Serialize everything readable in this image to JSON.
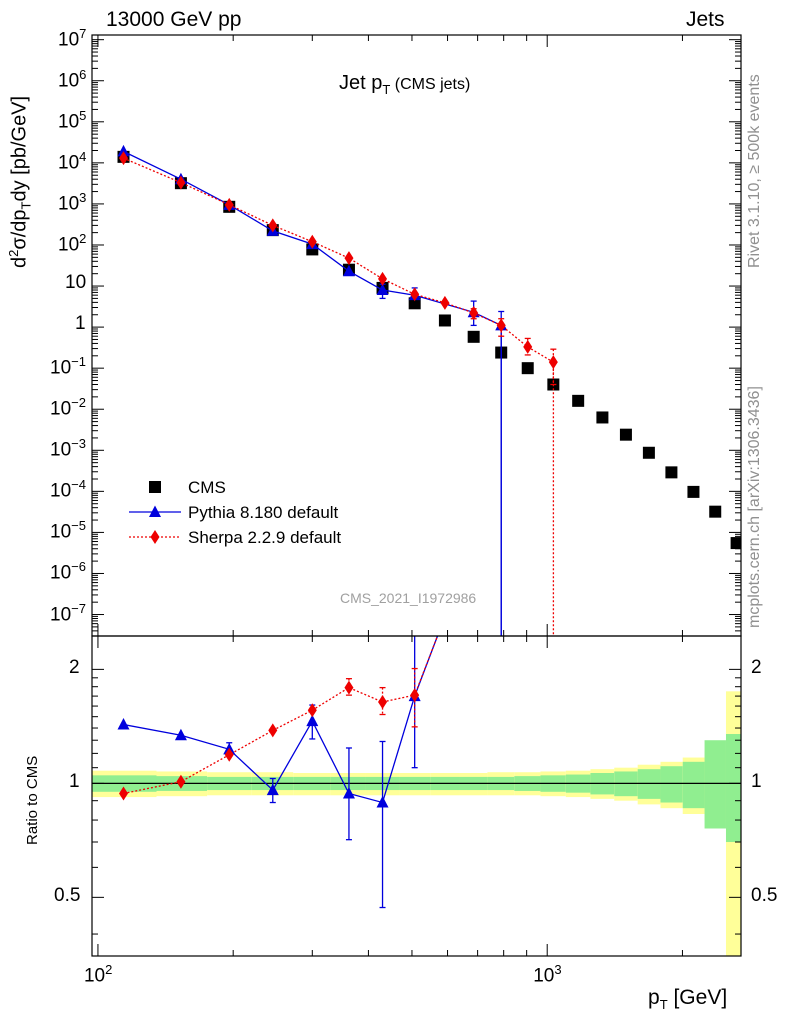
{
  "header": {
    "left": "13000 GeV pp",
    "right": "Jets"
  },
  "title": {
    "main": "Jet p",
    "sub": "T",
    "extra": " (CMS jets)"
  },
  "watermark": "CMS_2021_I1972986",
  "side_labels": {
    "rivet": "Rivet 3.1.10, ≥ 500k events",
    "source": "mcplots.cern.ch [arXiv:1306.3436]"
  },
  "chart_data": [
    {
      "type": "scatter",
      "panel": "main",
      "x_scale": "log",
      "y_scale": "log",
      "xlim": [
        97,
        2700
      ],
      "ylim": [
        3e-08,
        13000000.0
      ],
      "ylabel": "d²σ/dp_T dy [pb/GeV]",
      "ylabel_parts": {
        "a": "d",
        "sup": "2",
        "b": "σ/dp",
        "sub": "T",
        "c": "dy [pb/GeV]"
      },
      "ytick_labels": {
        "1e7": "10^7",
        "1e6": "10^6",
        "1e5": "10^5",
        "1e4": "10^4",
        "1e3": "10^3",
        "1e2": "10^2",
        "10": "10",
        "1": "1",
        "1e-1": "10^-1",
        "1e-2": "10^-2",
        "1e-3": "10^-3",
        "1e-4": "10^-4",
        "1e-5": "10^-5",
        "1e-6": "10^-6",
        "1e-7": "10^-7"
      },
      "legend_position": "bottom-left",
      "series": [
        {
          "name": "CMS",
          "color": "#000000",
          "marker": "square",
          "line": "none",
          "points": [
            [
              114,
              14000
            ],
            [
              153,
              3200
            ],
            [
              196,
              850
            ],
            [
              245,
              230
            ],
            [
              300,
              78
            ],
            [
              362,
              25
            ],
            [
              430,
              9
            ],
            [
              507,
              3.8
            ],
            [
              592,
              1.45
            ],
            [
              686,
              0.58
            ],
            [
              790,
              0.24
            ],
            [
              905,
              0.1
            ],
            [
              1032,
              0.04
            ],
            [
              1172,
              0.016
            ],
            [
              1327,
              0.0063
            ],
            [
              1497,
              0.0024
            ],
            [
              1684,
              0.00087
            ],
            [
              1890,
              0.00029
            ],
            [
              2116,
              9.7e-05
            ],
            [
              2366,
              3.2e-05
            ],
            [
              2640,
              5.5e-06
            ]
          ]
        },
        {
          "name": "Pythia 8.180 default",
          "color": "#0000dd",
          "marker": "triangle",
          "line": "solid",
          "points": [
            [
              114,
              19000
            ],
            [
              153,
              4000
            ],
            [
              196,
              950
            ],
            [
              245,
              220
            ],
            [
              300,
              105
            ],
            [
              362,
              23
            ],
            [
              430,
              8
            ],
            [
              507,
              6
            ],
            [
              686,
              2.3
            ],
            [
              790,
              1.1
            ]
          ],
          "y_err_low": [
            0,
            0,
            0,
            0,
            0,
            0,
            3,
            0,
            1.2,
            1.1
          ],
          "y_err_high": [
            0,
            0,
            0,
            0,
            0,
            0,
            3,
            3,
            2,
            1.3
          ],
          "dropoff": {
            "x": 790,
            "to": "below-axis"
          }
        },
        {
          "name": "Sherpa 2.2.9 default",
          "color": "#ee0000",
          "marker": "diamond",
          "line": "dotted",
          "points": [
            [
              114,
              13000
            ],
            [
              153,
              3300
            ],
            [
              196,
              950
            ],
            [
              245,
              300
            ],
            [
              300,
              120
            ],
            [
              362,
              48
            ],
            [
              430,
              15
            ],
            [
              507,
              6.3
            ],
            [
              592,
              3.9
            ],
            [
              686,
              2.2
            ],
            [
              790,
              1.1
            ],
            [
              905,
              0.33
            ],
            [
              1032,
              0.14
            ]
          ],
          "y_err_low": [
            0,
            0,
            0,
            0,
            0,
            0,
            0,
            0,
            0,
            0.6,
            0.5,
            0.12,
            0.1
          ],
          "y_err_high": [
            0,
            0,
            0,
            0,
            0,
            0,
            0,
            0,
            0,
            0.6,
            0.5,
            0.2,
            0.15
          ],
          "dropoff": {
            "x": 1032,
            "to": "below-axis"
          }
        }
      ]
    },
    {
      "type": "line",
      "panel": "ratio",
      "x_scale": "log",
      "y_scale": "log",
      "xlim": [
        97,
        2700
      ],
      "ylim": [
        0.35,
        2.45
      ],
      "xlabel": "p_T [GeV]",
      "xlabel_parts": {
        "a": "p",
        "sub": "T",
        "b": " [GeV]"
      },
      "ylabel": "Ratio to CMS",
      "xtick_labels": {
        "100": "10^2",
        "1000": "10^3"
      },
      "ytick_labels": {
        "0.5": "0.5",
        "1": "1",
        "2": "2"
      },
      "reference_line": 1,
      "uncertainty_bands": {
        "colors": {
          "outer": "#ffff99",
          "inner": "#90ee90"
        },
        "edges": [
          97,
          135,
          175,
          220,
          272,
          330,
          395,
          468,
          549,
          638,
          736,
          845,
          966,
          1100,
          1248,
          1410,
          1590,
          1787,
          2003,
          2240,
          2500,
          2700
        ],
        "outer_lo": [
          0.92,
          0.925,
          0.93,
          0.93,
          0.93,
          0.93,
          0.93,
          0.93,
          0.93,
          0.93,
          0.93,
          0.93,
          0.925,
          0.92,
          0.91,
          0.9,
          0.88,
          0.86,
          0.83,
          0.8,
          0.34
        ],
        "outer_hi": [
          1.08,
          1.075,
          1.07,
          1.07,
          1.065,
          1.065,
          1.065,
          1.065,
          1.065,
          1.065,
          1.07,
          1.07,
          1.075,
          1.08,
          1.09,
          1.1,
          1.12,
          1.14,
          1.17,
          1.22,
          1.75
        ],
        "inner_lo": [
          0.95,
          0.955,
          0.96,
          0.96,
          0.96,
          0.96,
          0.96,
          0.96,
          0.96,
          0.96,
          0.96,
          0.955,
          0.95,
          0.945,
          0.935,
          0.925,
          0.91,
          0.89,
          0.86,
          0.76,
          0.7
        ],
        "inner_hi": [
          1.05,
          1.045,
          1.04,
          1.04,
          1.04,
          1.04,
          1.04,
          1.04,
          1.04,
          1.04,
          1.04,
          1.045,
          1.05,
          1.055,
          1.065,
          1.075,
          1.09,
          1.11,
          1.14,
          1.3,
          1.35
        ]
      },
      "series": [
        {
          "name": "Pythia 8.180 default",
          "color": "#0000dd",
          "marker": "triangle",
          "line": "solid",
          "points": [
            [
              114,
              1.43
            ],
            [
              153,
              1.34
            ],
            [
              196,
              1.23
            ],
            [
              245,
              0.96
            ],
            [
              300,
              1.46
            ],
            [
              362,
              0.94
            ],
            [
              430,
              0.89
            ],
            [
              507,
              1.7
            ]
          ],
          "y_err_low": [
            0,
            0,
            0.05,
            0.07,
            0.15,
            0.23,
            0.42,
            0.6
          ],
          "y_err_high": [
            0,
            0,
            0.05,
            0.07,
            0.15,
            0.3,
            0.4,
            0.9
          ],
          "continues_to": [
            570,
            2.45
          ]
        },
        {
          "name": "Sherpa 2.2.9 default",
          "color": "#ee0000",
          "marker": "diamond",
          "line": "dotted",
          "points": [
            [
              114,
              0.94
            ],
            [
              153,
              1.01
            ],
            [
              196,
              1.19
            ],
            [
              245,
              1.38
            ],
            [
              300,
              1.56
            ],
            [
              362,
              1.79
            ],
            [
              430,
              1.64
            ],
            [
              507,
              1.71
            ]
          ],
          "y_err_low": [
            0,
            0,
            0,
            0,
            0,
            0.08,
            0.12,
            0.3
          ],
          "y_err_high": [
            0,
            0,
            0,
            0,
            0,
            0.1,
            0.15,
            0.3
          ],
          "continues_to": [
            570,
            2.45
          ]
        }
      ]
    }
  ]
}
